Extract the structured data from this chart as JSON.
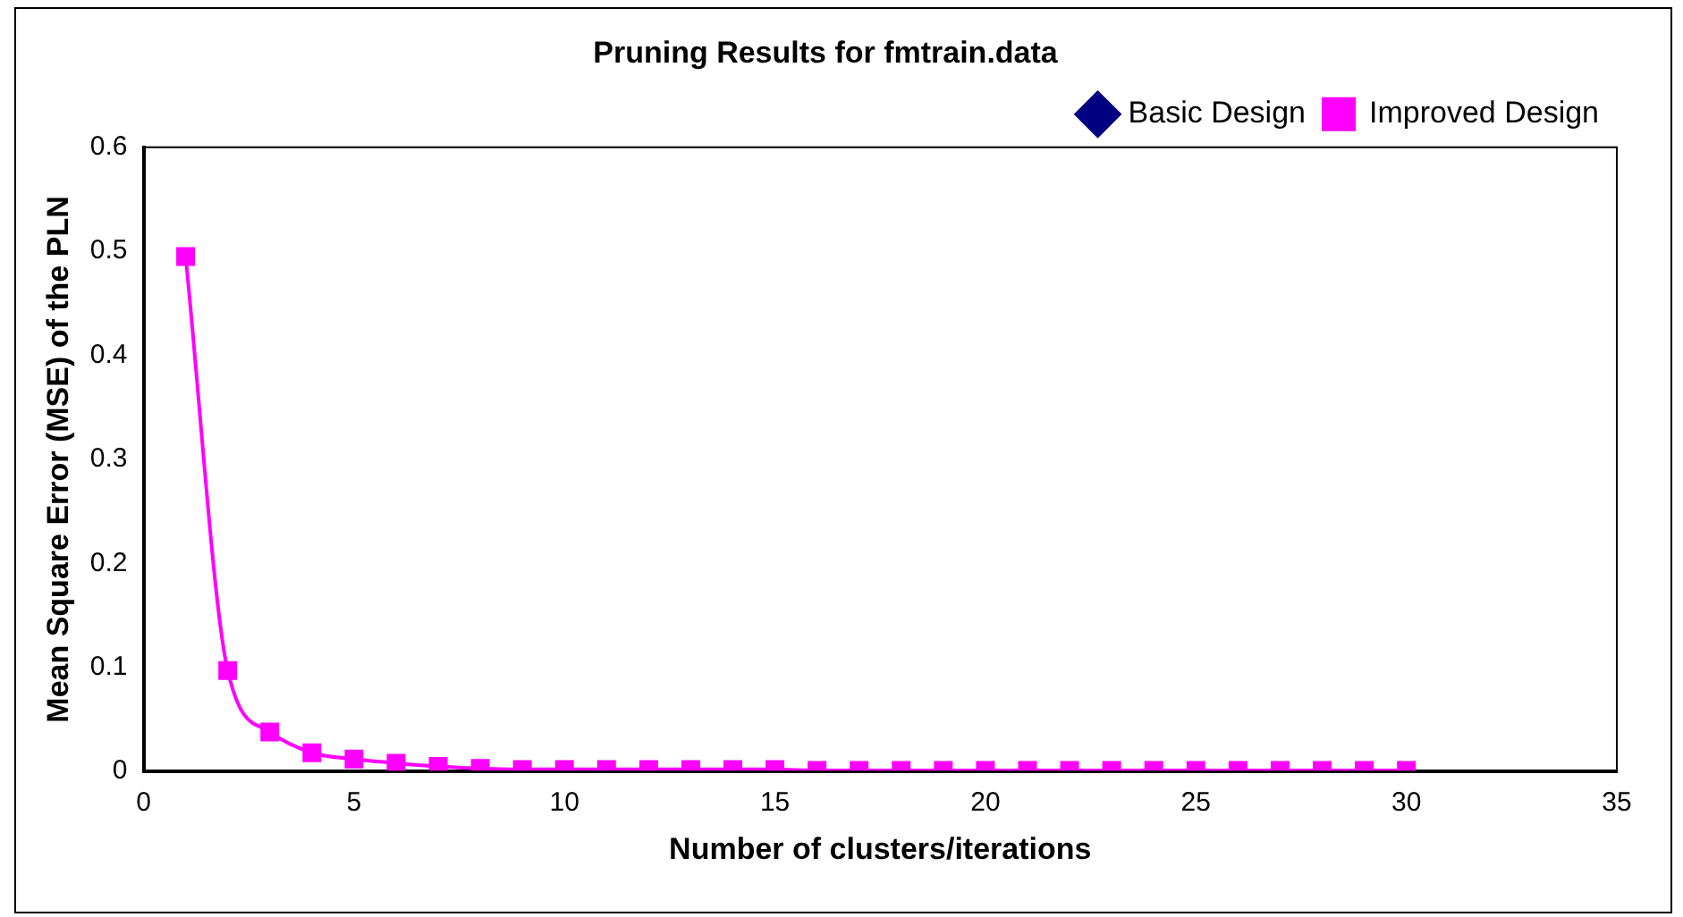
{
  "chart_data": {
    "type": "line",
    "title": "Pruning Results for fmtrain.data",
    "xlabel": "Number of clusters/iterations",
    "ylabel": "Mean Square Error (MSE) of the PLN",
    "x": [
      1,
      2,
      3,
      4,
      5,
      6,
      7,
      8,
      9,
      10,
      11,
      12,
      13,
      14,
      15,
      16,
      17,
      18,
      19,
      20,
      21,
      22,
      23,
      24,
      25,
      26,
      27,
      28,
      29,
      30
    ],
    "series": [
      {
        "name": "Basic Design",
        "color": "#000080",
        "marker": "diamond",
        "values": [
          null,
          null,
          null,
          null,
          null,
          null,
          null,
          null,
          null,
          null,
          null,
          null,
          null,
          null,
          null,
          null,
          null,
          null,
          null,
          null,
          null,
          null,
          null,
          null,
          null,
          null,
          null,
          null,
          null,
          null
        ]
      },
      {
        "name": "Improved Design",
        "color": "#ff00ff",
        "marker": "square",
        "values": [
          0.495,
          0.097,
          0.038,
          0.018,
          0.012,
          0.008,
          0.005,
          0.003,
          0.002,
          0.002,
          0.002,
          0.002,
          0.002,
          0.002,
          0.002,
          0.001,
          0.001,
          0.001,
          0.001,
          0.001,
          0.001,
          0.001,
          0.001,
          0.001,
          0.001,
          0.001,
          0.001,
          0.001,
          0.001,
          0.001
        ]
      }
    ],
    "xlim": [
      0,
      35
    ],
    "xticks": [
      0,
      5,
      10,
      15,
      20,
      25,
      30,
      35
    ],
    "ylim": [
      0,
      0.6
    ],
    "yticks": [
      0,
      0.1,
      0.2,
      0.3,
      0.4,
      0.5,
      0.6
    ],
    "grid": false,
    "legend": "top right"
  }
}
